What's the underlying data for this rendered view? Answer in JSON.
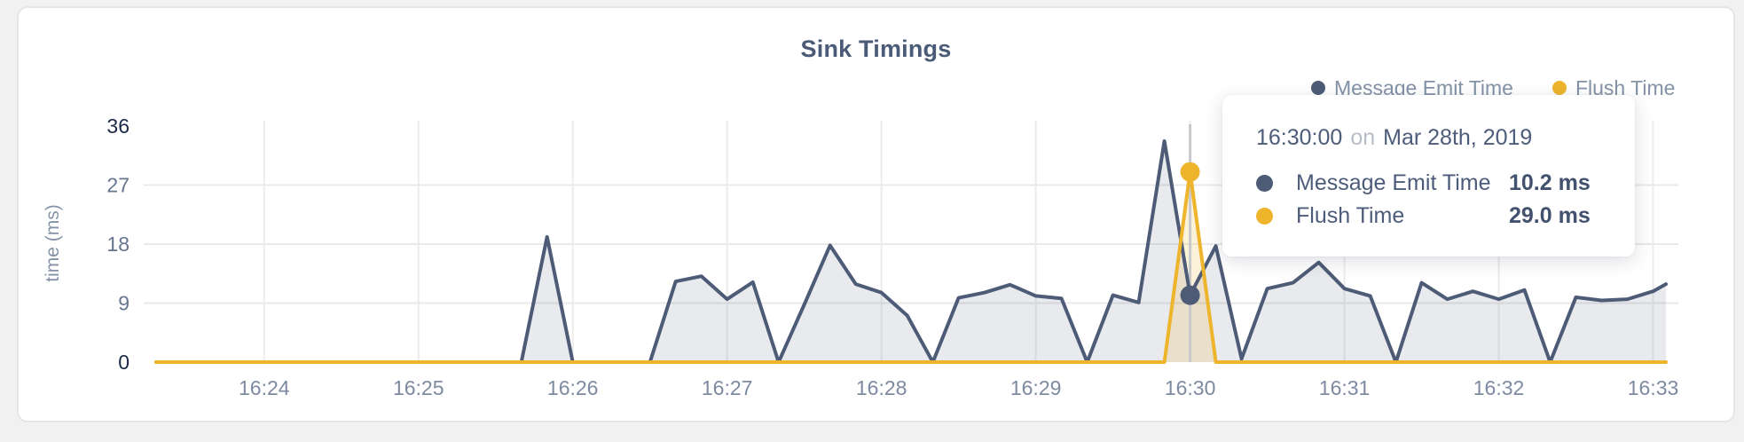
{
  "chart": {
    "title": "Sink Timings",
    "legend": [
      {
        "label": "Message Emit Time",
        "color": "#4d5b77"
      },
      {
        "label": "Flush Time",
        "color": "#edb42c"
      }
    ]
  },
  "tooltip": {
    "time": "16:30:00",
    "on_word": "on",
    "date": "Mar 28th, 2019",
    "rows": [
      {
        "label": "Message Emit Time",
        "value": "10.2 ms",
        "color": "#4d5b77"
      },
      {
        "label": "Flush Time",
        "value": "29.0 ms",
        "color": "#edb42c"
      }
    ]
  },
  "chart_data": {
    "type": "area",
    "title": "Sink Timings",
    "xlabel": "",
    "ylabel": "time (ms)",
    "ylim": [
      0,
      36
    ],
    "y_ticks": [
      0,
      9,
      18,
      27,
      36
    ],
    "x_ticks": [
      "16:24",
      "16:25",
      "16:26",
      "16:27",
      "16:28",
      "16:29",
      "16:30",
      "16:31",
      "16:32",
      "16:33"
    ],
    "x_range": [
      "16:23:18",
      "16:33:05"
    ],
    "grid": true,
    "legend_position": "top-right",
    "series": [
      {
        "name": "Message Emit Time",
        "color": "#4d5b77",
        "points": [
          [
            "16:23:18",
            0
          ],
          [
            "16:23:30",
            0
          ],
          [
            "16:23:40",
            0
          ],
          [
            "16:23:50",
            0
          ],
          [
            "16:24:00",
            0
          ],
          [
            "16:24:10",
            0
          ],
          [
            "16:24:20",
            0
          ],
          [
            "16:24:30",
            0
          ],
          [
            "16:24:40",
            0
          ],
          [
            "16:24:50",
            0
          ],
          [
            "16:25:00",
            0
          ],
          [
            "16:25:10",
            0
          ],
          [
            "16:25:20",
            0
          ],
          [
            "16:25:30",
            0
          ],
          [
            "16:25:40",
            0
          ],
          [
            "16:25:50",
            19.1
          ],
          [
            "16:26:00",
            0
          ],
          [
            "16:26:10",
            0
          ],
          [
            "16:26:20",
            0
          ],
          [
            "16:26:30",
            0
          ],
          [
            "16:26:40",
            12.3
          ],
          [
            "16:26:50",
            13.1
          ],
          [
            "16:27:00",
            9.6
          ],
          [
            "16:27:10",
            12.2
          ],
          [
            "16:27:20",
            0
          ],
          [
            "16:27:30",
            8.8
          ],
          [
            "16:27:40",
            17.8
          ],
          [
            "16:27:50",
            11.9
          ],
          [
            "16:28:00",
            10.6
          ],
          [
            "16:28:10",
            7.1
          ],
          [
            "16:28:20",
            0
          ],
          [
            "16:28:30",
            9.8
          ],
          [
            "16:28:40",
            10.6
          ],
          [
            "16:28:50",
            11.8
          ],
          [
            "16:29:00",
            10.1
          ],
          [
            "16:29:10",
            9.7
          ],
          [
            "16:29:20",
            0
          ],
          [
            "16:29:30",
            10.2
          ],
          [
            "16:29:40",
            9.1
          ],
          [
            "16:29:50",
            33.7
          ],
          [
            "16:30:00",
            10.2
          ],
          [
            "16:30:10",
            17.7
          ],
          [
            "16:30:20",
            0.5
          ],
          [
            "16:30:30",
            11.2
          ],
          [
            "16:30:40",
            12.1
          ],
          [
            "16:30:50",
            15.2
          ],
          [
            "16:31:00",
            11.2
          ],
          [
            "16:31:10",
            10.1
          ],
          [
            "16:31:20",
            0
          ],
          [
            "16:31:30",
            12.1
          ],
          [
            "16:31:40",
            9.6
          ],
          [
            "16:31:50",
            10.8
          ],
          [
            "16:32:00",
            9.6
          ],
          [
            "16:32:10",
            11.0
          ],
          [
            "16:32:20",
            0
          ],
          [
            "16:32:30",
            9.9
          ],
          [
            "16:32:40",
            9.4
          ],
          [
            "16:32:50",
            9.6
          ],
          [
            "16:33:00",
            10.8
          ],
          [
            "16:33:05",
            11.9
          ]
        ]
      },
      {
        "name": "Flush Time",
        "color": "#edb42c",
        "points": [
          [
            "16:23:18",
            0
          ],
          [
            "16:29:50",
            0
          ],
          [
            "16:30:00",
            29.0
          ],
          [
            "16:30:10",
            0
          ],
          [
            "16:33:05",
            0
          ]
        ]
      }
    ],
    "highlight": {
      "time": "16:30:00",
      "values": [
        10.2,
        29.0
      ]
    }
  }
}
